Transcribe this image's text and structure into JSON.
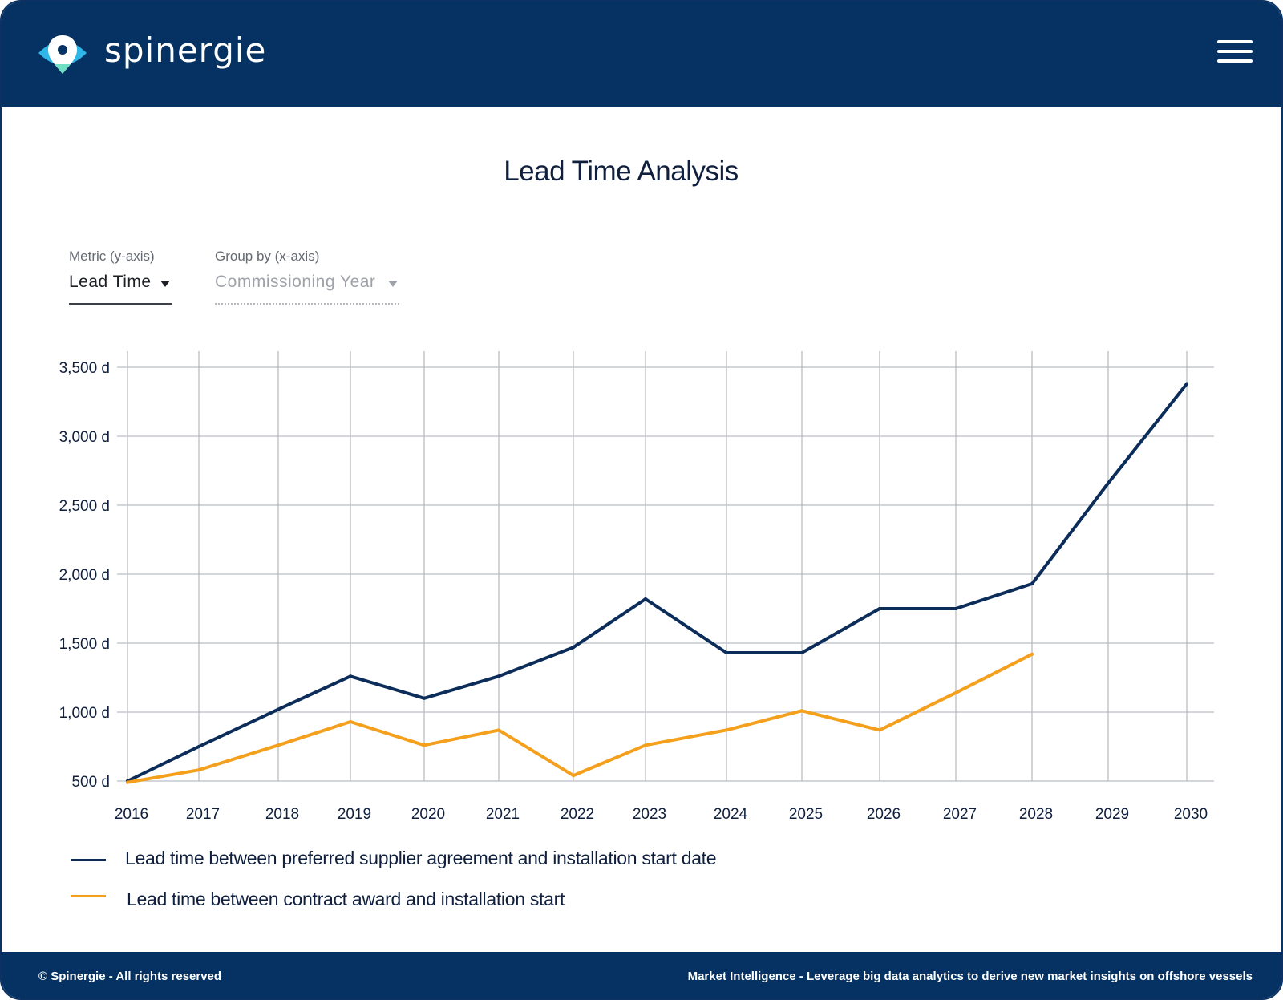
{
  "header": {
    "brand": "spinergie",
    "menu_icon": "hamburger-menu-icon"
  },
  "page_title": "Lead Time Analysis",
  "controls": {
    "metric": {
      "label": "Metric (y-axis)",
      "value": "Lead Time"
    },
    "group_by": {
      "label": "Group by (x-axis)",
      "value": "Commissioning Year"
    }
  },
  "chart_data": {
    "type": "line",
    "x": [
      "2016",
      "2017",
      "2018",
      "2019",
      "2020",
      "2021",
      "2022",
      "2023",
      "2024",
      "2025",
      "2026",
      "2027",
      "2028",
      "2029",
      "2030"
    ],
    "y_ticks": [
      "500 d",
      "1,000 d",
      "1,500 d",
      "2,000 d",
      "2,500 d",
      "3,000 d",
      "3,500 d"
    ],
    "ylim": [
      500,
      3500
    ],
    "grid": true,
    "legend_position": "bottom-left",
    "series": [
      {
        "name": "Lead time between preferred supplier agreement and installation start date",
        "color": "#0c2d5a",
        "values": [
          500,
          750,
          1020,
          1260,
          1100,
          1260,
          1470,
          1820,
          1430,
          1430,
          1750,
          1750,
          1930,
          2660,
          3380
        ]
      },
      {
        "name": "Lead time between contract award and installation start",
        "color": "#f4a01c",
        "values": [
          490,
          580,
          760,
          930,
          760,
          870,
          540,
          760,
          870,
          1010,
          870,
          1140,
          1420,
          null,
          null
        ]
      }
    ]
  },
  "footer": {
    "left": "© Spinergie - All rights reserved",
    "right": "Market Intelligence - Leverage big data analytics to derive new market insights on offshore vessels"
  }
}
